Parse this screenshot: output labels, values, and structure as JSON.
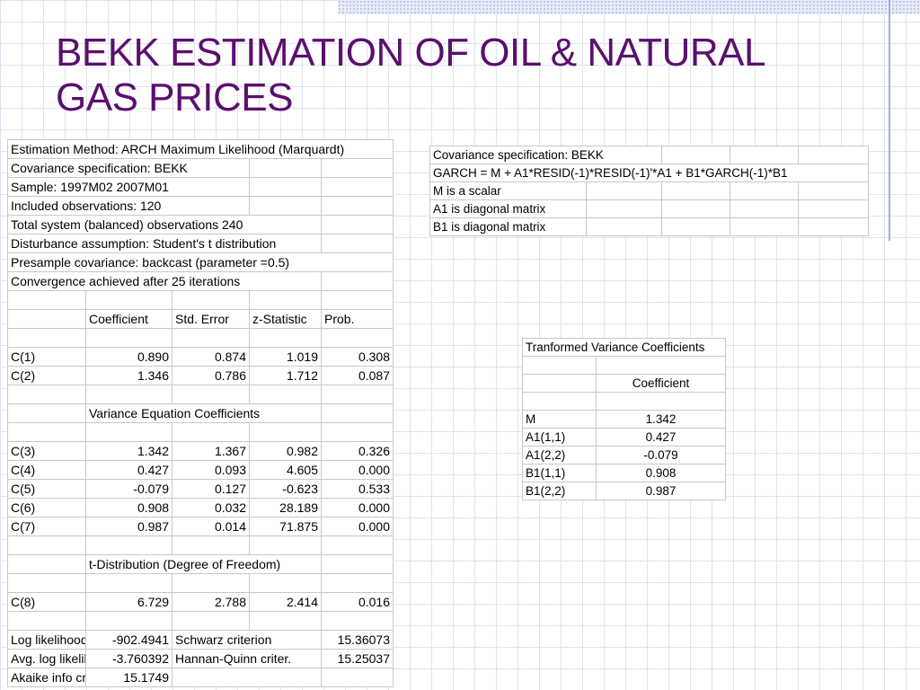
{
  "slide": {
    "title_line1": "BEKK ESTIMATION OF OIL & NATURAL",
    "title_line2": "GAS PRICES"
  },
  "main_table": {
    "header_rows": [
      "Estimation Method: ARCH Maximum Likelihood (Marquardt)",
      "Covariance specification: BEKK",
      "Sample: 1997M02 2007M01",
      "Included observations: 120",
      "Total system (balanced) observations 240",
      "Disturbance assumption: Student's t distribution",
      "Presample covariance: backcast (parameter =0.5)",
      "Convergence achieved after 25 iterations"
    ],
    "columns": [
      "Coefficient",
      "Std. Error",
      "z-Statistic",
      "Prob."
    ],
    "mean_rows": [
      [
        "C(1)",
        "0.890",
        "0.874",
        "1.019",
        "0.308"
      ],
      [
        "C(2)",
        "1.346",
        "0.786",
        "1.712",
        "0.087"
      ]
    ],
    "variance_heading": "Variance Equation Coefficients",
    "variance_rows": [
      [
        "C(3)",
        "1.342",
        "1.367",
        "0.982",
        "0.326"
      ],
      [
        "C(4)",
        "0.427",
        "0.093",
        "4.605",
        "0.000"
      ],
      [
        "C(5)",
        "-0.079",
        "0.127",
        "-0.623",
        "0.533"
      ],
      [
        "C(6)",
        "0.908",
        "0.032",
        "28.189",
        "0.000"
      ],
      [
        "C(7)",
        "0.987",
        "0.014",
        "71.875",
        "0.000"
      ]
    ],
    "tdist_heading": "t-Distribution (Degree of Freedom)",
    "tdist_rows": [
      [
        "C(8)",
        "6.729",
        "2.788",
        "2.414",
        "0.016"
      ]
    ],
    "stats_rows": [
      [
        "Log likelihood",
        "-902.4941",
        "Schwarz criterion",
        "15.36073"
      ],
      [
        "Avg. log likelihood",
        "-3.760392",
        "Hannan-Quinn criter.",
        "15.25037"
      ],
      [
        "Akaike info criterion",
        "15.1749",
        "",
        ""
      ]
    ]
  },
  "spec_table": {
    "rows": [
      "Covariance specification: BEKK",
      "GARCH = M + A1*RESID(-1)*RESID(-1)'*A1 + B1*GARCH(-1)*B1",
      "M is a scalar",
      "A1 is diagonal matrix",
      "B1 is diagonal matrix"
    ]
  },
  "transformed_table": {
    "title": "Tranformed Variance Coefficients",
    "column": "Coefficient",
    "rows": [
      [
        "M",
        "1.342"
      ],
      [
        "A1(1,1)",
        "0.427"
      ],
      [
        "A1(2,2)",
        "-0.079"
      ],
      [
        "B1(1,1)",
        "0.908"
      ],
      [
        "B1(2,2)",
        "0.987"
      ]
    ]
  }
}
